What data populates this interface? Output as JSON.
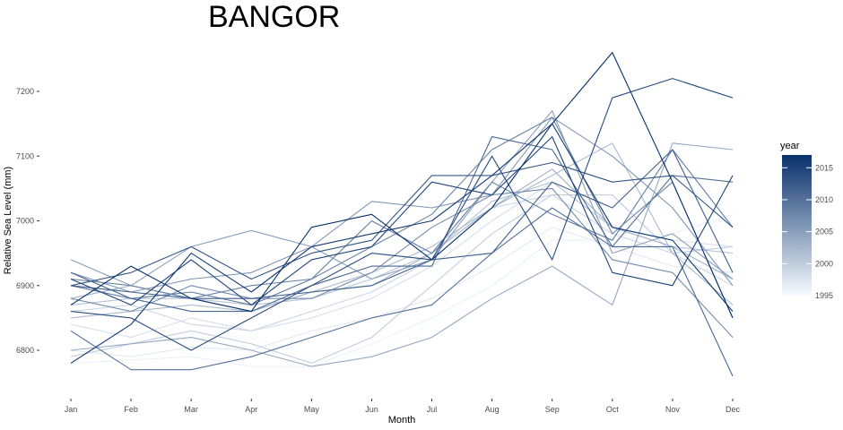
{
  "chart_data": {
    "type": "line",
    "title": "BANGOR",
    "xlabel": "Month",
    "ylabel": "Relative Sea Level (mm)",
    "categories": [
      "Jan",
      "Feb",
      "Mar",
      "Apr",
      "May",
      "Jun",
      "Jul",
      "Aug",
      "Sep",
      "Oct",
      "Nov",
      "Dec"
    ],
    "ylim": [
      6740,
      7270
    ],
    "yticks": [
      6800,
      6900,
      7000,
      7100,
      7200
    ],
    "grid": false,
    "legend": {
      "title": "year",
      "position": "right",
      "range": [
        1995,
        2017
      ],
      "ticks": [
        1995,
        2000,
        2005,
        2010,
        2015
      ],
      "low_color": "#f7fbff",
      "high_color": "#08306b"
    },
    "series": [
      {
        "year": 1995,
        "values": [
          6820,
          6800,
          6825,
          6820,
          6790,
          6800,
          6840,
          6900,
          6960,
          6985,
          6990,
          7000
        ]
      },
      {
        "year": 1996,
        "values": [
          6780,
          6785,
          6790,
          6775,
          6775,
          6810,
          6850,
          6900,
          6970,
          6970,
          6980,
          7010
        ]
      },
      {
        "year": 1997,
        "values": [
          6800,
          6790,
          6805,
          6800,
          6830,
          6850,
          6880,
          6930,
          6990,
          6960,
          6930,
          6920
        ]
      },
      {
        "year": 1998,
        "values": [
          6840,
          6820,
          6850,
          6830,
          6850,
          6880,
          6930,
          7000,
          7060,
          6990,
          6970,
          6960
        ]
      },
      {
        "year": 1999,
        "values": [
          6860,
          6870,
          6840,
          6830,
          6860,
          6890,
          6940,
          7020,
          7040,
          6980,
          6950,
          6900
        ]
      },
      {
        "year": 2000,
        "values": [
          6790,
          6810,
          6830,
          6810,
          6780,
          6820,
          6900,
          6980,
          7040,
          7040,
          6950,
          6960
        ]
      },
      {
        "year": 2001,
        "values": [
          6870,
          6880,
          6880,
          6870,
          6880,
          6910,
          6950,
          7030,
          7060,
          6990,
          6960,
          6950
        ]
      },
      {
        "year": 2002,
        "values": [
          6850,
          6860,
          6870,
          6860,
          6890,
          6920,
          6960,
          7020,
          7070,
          7120,
          6950,
          6870
        ]
      },
      {
        "year": 2003,
        "values": [
          6880,
          6900,
          6880,
          6860,
          6890,
          6900,
          6950,
          7020,
          7080,
          6990,
          6960,
          6910
        ]
      },
      {
        "year": 2004,
        "values": [
          6800,
          6810,
          6820,
          6800,
          6775,
          6790,
          6820,
          6880,
          6930,
          6870,
          7120,
          7110
        ]
      },
      {
        "year": 2005,
        "values": [
          6940,
          6900,
          6960,
          6985,
          6960,
          6910,
          6940,
          7060,
          7170,
          6950,
          6980,
          6910
        ]
      },
      {
        "year": 2006,
        "values": [
          6920,
          6890,
          6910,
          6920,
          6960,
          7030,
          7020,
          7040,
          7160,
          7100,
          7020,
          6900
        ]
      },
      {
        "year": 2007,
        "values": [
          6880,
          6860,
          6900,
          6880,
          6880,
          6920,
          6990,
          7040,
          7050,
          6940,
          6920,
          6820
        ]
      },
      {
        "year": 2008,
        "values": [
          6910,
          6900,
          6880,
          6900,
          6910,
          6960,
          7010,
          7110,
          7160,
          6980,
          7060,
          6850
        ]
      },
      {
        "year": 2009,
        "values": [
          6900,
          6880,
          6890,
          6870,
          6910,
          7000,
          6950,
          7060,
          7010,
          6970,
          7110,
          6990
        ]
      },
      {
        "year": 2010,
        "values": [
          6830,
          6770,
          6770,
          6790,
          6820,
          6850,
          6870,
          6950,
          7020,
          6960,
          7070,
          7060
        ]
      },
      {
        "year": 2011,
        "values": [
          6920,
          6880,
          6860,
          6860,
          6900,
          6930,
          6930,
          7130,
          7110,
          6960,
          6960,
          6760
        ]
      },
      {
        "year": 2012,
        "values": [
          6900,
          6890,
          6880,
          6880,
          6890,
          6900,
          6940,
          6950,
          7060,
          7020,
          7110,
          6920
        ]
      },
      {
        "year": 2013,
        "values": [
          6900,
          6920,
          6960,
          6910,
          6950,
          6970,
          7070,
          7070,
          7090,
          7060,
          7070,
          6990
        ]
      },
      {
        "year": 2014,
        "values": [
          6860,
          6850,
          6800,
          6850,
          6900,
          6950,
          6940,
          7100,
          6940,
          7190,
          7220,
          7190
        ]
      },
      {
        "year": 2015,
        "values": [
          6910,
          6870,
          6940,
          6870,
          6940,
          6960,
          7060,
          7040,
          7130,
          6920,
          6900,
          7070
        ]
      },
      {
        "year": 2016,
        "values": [
          6780,
          6840,
          6950,
          6890,
          6960,
          6980,
          7000,
          7070,
          7150,
          6990,
          6970,
          6860
        ]
      },
      {
        "year": 2017,
        "values": [
          6870,
          6930,
          6880,
          6860,
          6990,
          7010,
          6940,
          7020,
          7150,
          7260,
          7060,
          6850
        ]
      }
    ]
  }
}
